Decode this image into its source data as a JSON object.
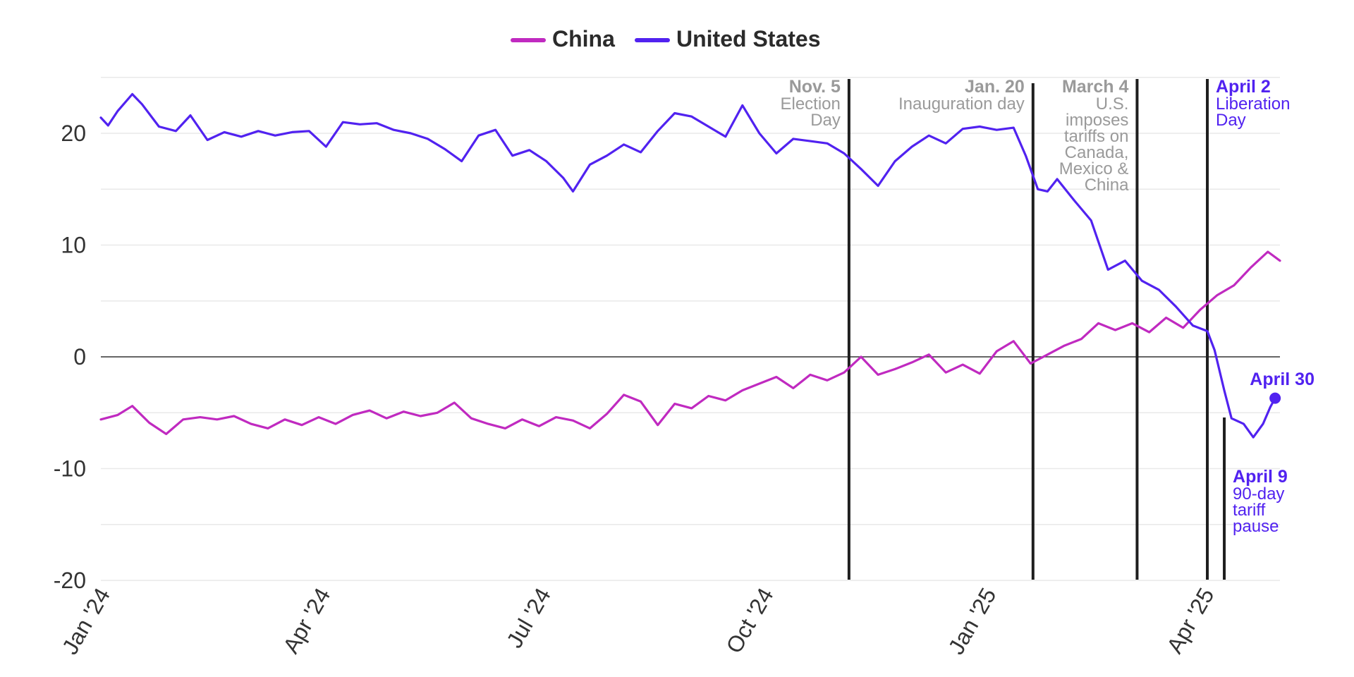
{
  "colors": {
    "china": "#c02ac0",
    "united_states": "#5122f0",
    "annotation_gray": "#9a9a9a"
  },
  "chart_data": {
    "type": "line",
    "title": "",
    "xlabel": "",
    "ylabel": "",
    "ylim": [
      -20,
      25
    ],
    "xlim": [
      "2024-01-01",
      "2025-05-02"
    ],
    "y_ticks": [
      20,
      10,
      0,
      -10,
      -20
    ],
    "y_tick_labels": [
      "20",
      "10",
      "0",
      "-10",
      "-20"
    ],
    "x_ticks": [
      {
        "date": "2024-01-01",
        "label": "Jan '24"
      },
      {
        "date": "2024-04-01",
        "label": "Apr '24"
      },
      {
        "date": "2024-07-01",
        "label": "Jul '24"
      },
      {
        "date": "2024-10-01",
        "label": "Oct '24"
      },
      {
        "date": "2025-01-01",
        "label": "Jan '25"
      },
      {
        "date": "2025-04-01",
        "label": "Apr '25"
      }
    ],
    "grid": true,
    "legend": {
      "position": "top-center",
      "entries": [
        "China",
        "United States"
      ]
    },
    "series": [
      {
        "name": "China",
        "color": "#c02ac0",
        "points": [
          [
            "2024-01-01",
            -5.6
          ],
          [
            "2024-01-08",
            -5.2
          ],
          [
            "2024-01-14",
            -4.4
          ],
          [
            "2024-01-21",
            -5.9
          ],
          [
            "2024-01-28",
            -6.9
          ],
          [
            "2024-02-04",
            -5.6
          ],
          [
            "2024-02-11",
            -5.4
          ],
          [
            "2024-02-18",
            -5.6
          ],
          [
            "2024-02-25",
            -5.3
          ],
          [
            "2024-03-03",
            -6.0
          ],
          [
            "2024-03-10",
            -6.4
          ],
          [
            "2024-03-17",
            -5.6
          ],
          [
            "2024-03-24",
            -6.1
          ],
          [
            "2024-03-31",
            -5.4
          ],
          [
            "2024-04-07",
            -6.0
          ],
          [
            "2024-04-14",
            -5.2
          ],
          [
            "2024-04-21",
            -4.8
          ],
          [
            "2024-04-28",
            -5.5
          ],
          [
            "2024-05-05",
            -4.9
          ],
          [
            "2024-05-12",
            -5.3
          ],
          [
            "2024-05-19",
            -5.0
          ],
          [
            "2024-05-26",
            -4.1
          ],
          [
            "2024-06-02",
            -5.5
          ],
          [
            "2024-06-09",
            -6.0
          ],
          [
            "2024-06-16",
            -6.4
          ],
          [
            "2024-06-23",
            -5.6
          ],
          [
            "2024-06-30",
            -6.2
          ],
          [
            "2024-07-07",
            -5.4
          ],
          [
            "2024-07-14",
            -5.7
          ],
          [
            "2024-07-21",
            -6.4
          ],
          [
            "2024-07-28",
            -5.1
          ],
          [
            "2024-08-04",
            -3.4
          ],
          [
            "2024-08-11",
            -4.0
          ],
          [
            "2024-08-18",
            -6.1
          ],
          [
            "2024-08-25",
            -4.2
          ],
          [
            "2024-09-01",
            -4.6
          ],
          [
            "2024-09-08",
            -3.5
          ],
          [
            "2024-09-15",
            -3.9
          ],
          [
            "2024-09-22",
            -3.0
          ],
          [
            "2024-09-29",
            -2.4
          ],
          [
            "2024-10-06",
            -1.8
          ],
          [
            "2024-10-13",
            -2.8
          ],
          [
            "2024-10-20",
            -1.6
          ],
          [
            "2024-10-27",
            -2.1
          ],
          [
            "2024-11-03",
            -1.4
          ],
          [
            "2024-11-10",
            0.0
          ],
          [
            "2024-11-17",
            -1.6
          ],
          [
            "2024-11-24",
            -1.1
          ],
          [
            "2024-12-01",
            -0.5
          ],
          [
            "2024-12-08",
            0.2
          ],
          [
            "2024-12-15",
            -1.4
          ],
          [
            "2024-12-22",
            -0.7
          ],
          [
            "2024-12-29",
            -1.5
          ],
          [
            "2025-01-05",
            0.5
          ],
          [
            "2025-01-12",
            1.4
          ],
          [
            "2025-01-19",
            -0.6
          ],
          [
            "2025-01-26",
            0.2
          ],
          [
            "2025-02-02",
            1.0
          ],
          [
            "2025-02-09",
            1.6
          ],
          [
            "2025-02-16",
            3.0
          ],
          [
            "2025-02-23",
            2.4
          ],
          [
            "2025-03-02",
            3.0
          ],
          [
            "2025-03-09",
            2.2
          ],
          [
            "2025-03-16",
            3.5
          ],
          [
            "2025-03-23",
            2.6
          ],
          [
            "2025-03-30",
            4.2
          ],
          [
            "2025-04-06",
            5.5
          ],
          [
            "2025-04-13",
            6.4
          ],
          [
            "2025-04-20",
            8.0
          ],
          [
            "2025-04-27",
            9.4
          ],
          [
            "2025-05-02",
            8.6
          ]
        ]
      },
      {
        "name": "United States",
        "color": "#5122f0",
        "points": [
          [
            "2024-01-01",
            21.4
          ],
          [
            "2024-01-04",
            20.7
          ],
          [
            "2024-01-08",
            22.0
          ],
          [
            "2024-01-14",
            23.5
          ],
          [
            "2024-01-18",
            22.6
          ],
          [
            "2024-01-25",
            20.6
          ],
          [
            "2024-02-01",
            20.2
          ],
          [
            "2024-02-07",
            21.6
          ],
          [
            "2024-02-14",
            19.4
          ],
          [
            "2024-02-21",
            20.1
          ],
          [
            "2024-02-28",
            19.7
          ],
          [
            "2024-03-06",
            20.2
          ],
          [
            "2024-03-13",
            19.8
          ],
          [
            "2024-03-20",
            20.1
          ],
          [
            "2024-03-27",
            20.2
          ],
          [
            "2024-04-03",
            18.8
          ],
          [
            "2024-04-10",
            21.0
          ],
          [
            "2024-04-17",
            20.8
          ],
          [
            "2024-04-24",
            20.9
          ],
          [
            "2024-05-01",
            20.3
          ],
          [
            "2024-05-08",
            20.0
          ],
          [
            "2024-05-15",
            19.5
          ],
          [
            "2024-05-22",
            18.6
          ],
          [
            "2024-05-29",
            17.5
          ],
          [
            "2024-06-05",
            19.8
          ],
          [
            "2024-06-12",
            20.3
          ],
          [
            "2024-06-19",
            18.0
          ],
          [
            "2024-06-26",
            18.5
          ],
          [
            "2024-07-03",
            17.5
          ],
          [
            "2024-07-10",
            16.0
          ],
          [
            "2024-07-14",
            14.8
          ],
          [
            "2024-07-21",
            17.2
          ],
          [
            "2024-07-28",
            18.0
          ],
          [
            "2024-08-04",
            19.0
          ],
          [
            "2024-08-11",
            18.3
          ],
          [
            "2024-08-18",
            20.2
          ],
          [
            "2024-08-25",
            21.8
          ],
          [
            "2024-09-01",
            21.5
          ],
          [
            "2024-09-08",
            20.6
          ],
          [
            "2024-09-15",
            19.7
          ],
          [
            "2024-09-22",
            22.5
          ],
          [
            "2024-09-29",
            20.0
          ],
          [
            "2024-10-06",
            18.2
          ],
          [
            "2024-10-13",
            19.5
          ],
          [
            "2024-10-20",
            19.3
          ],
          [
            "2024-10-27",
            19.1
          ],
          [
            "2024-11-03",
            18.2
          ],
          [
            "2024-11-10",
            16.8
          ],
          [
            "2024-11-17",
            15.3
          ],
          [
            "2024-11-24",
            17.5
          ],
          [
            "2024-12-01",
            18.8
          ],
          [
            "2024-12-08",
            19.8
          ],
          [
            "2024-12-15",
            19.1
          ],
          [
            "2024-12-22",
            20.4
          ],
          [
            "2024-12-29",
            20.6
          ],
          [
            "2025-01-05",
            20.3
          ],
          [
            "2025-01-12",
            20.5
          ],
          [
            "2025-01-17",
            18.0
          ],
          [
            "2025-01-22",
            15.0
          ],
          [
            "2025-01-26",
            14.8
          ],
          [
            "2025-01-30",
            15.9
          ],
          [
            "2025-02-06",
            14.0
          ],
          [
            "2025-02-13",
            12.2
          ],
          [
            "2025-02-20",
            7.8
          ],
          [
            "2025-02-27",
            8.6
          ],
          [
            "2025-03-06",
            6.8
          ],
          [
            "2025-03-13",
            6.0
          ],
          [
            "2025-03-20",
            4.5
          ],
          [
            "2025-03-27",
            2.8
          ],
          [
            "2025-04-02",
            2.3
          ],
          [
            "2025-04-05",
            0.6
          ],
          [
            "2025-04-09",
            -3.0
          ],
          [
            "2025-04-12",
            -5.5
          ],
          [
            "2025-04-17",
            -6.0
          ],
          [
            "2025-04-21",
            -7.2
          ],
          [
            "2025-04-25",
            -6.0
          ],
          [
            "2025-04-28",
            -4.5
          ],
          [
            "2025-04-30",
            -3.7
          ]
        ]
      }
    ],
    "events": [
      {
        "date": "2024-11-05",
        "title": "Nov. 5",
        "body": [
          "Election",
          "Day"
        ],
        "color": "#9a9a9a",
        "align": "right"
      },
      {
        "date": "2025-01-20",
        "title": "Jan. 20",
        "body": [
          "Inauguration day"
        ],
        "color": "#9a9a9a",
        "align": "right"
      },
      {
        "date": "2025-03-04",
        "title": "March 4",
        "body": [
          "U.S.",
          "imposes",
          "tariffs on",
          "Canada,",
          "Mexico &",
          "China"
        ],
        "color": "#9a9a9a",
        "align": "right"
      },
      {
        "date": "2025-04-02",
        "title": "April 2",
        "body": [
          "Liberation",
          "Day"
        ],
        "color": "#5122f0",
        "align": "left"
      },
      {
        "date": "2025-04-09",
        "title": "April 9",
        "body": [
          "90-day",
          "tariff",
          "pause"
        ],
        "color": "#5122f0",
        "align": "left",
        "position": "bottom"
      }
    ],
    "endpoint_label": {
      "series": "United States",
      "date": "2025-04-30",
      "value": -3.7,
      "text": "April 30"
    }
  }
}
